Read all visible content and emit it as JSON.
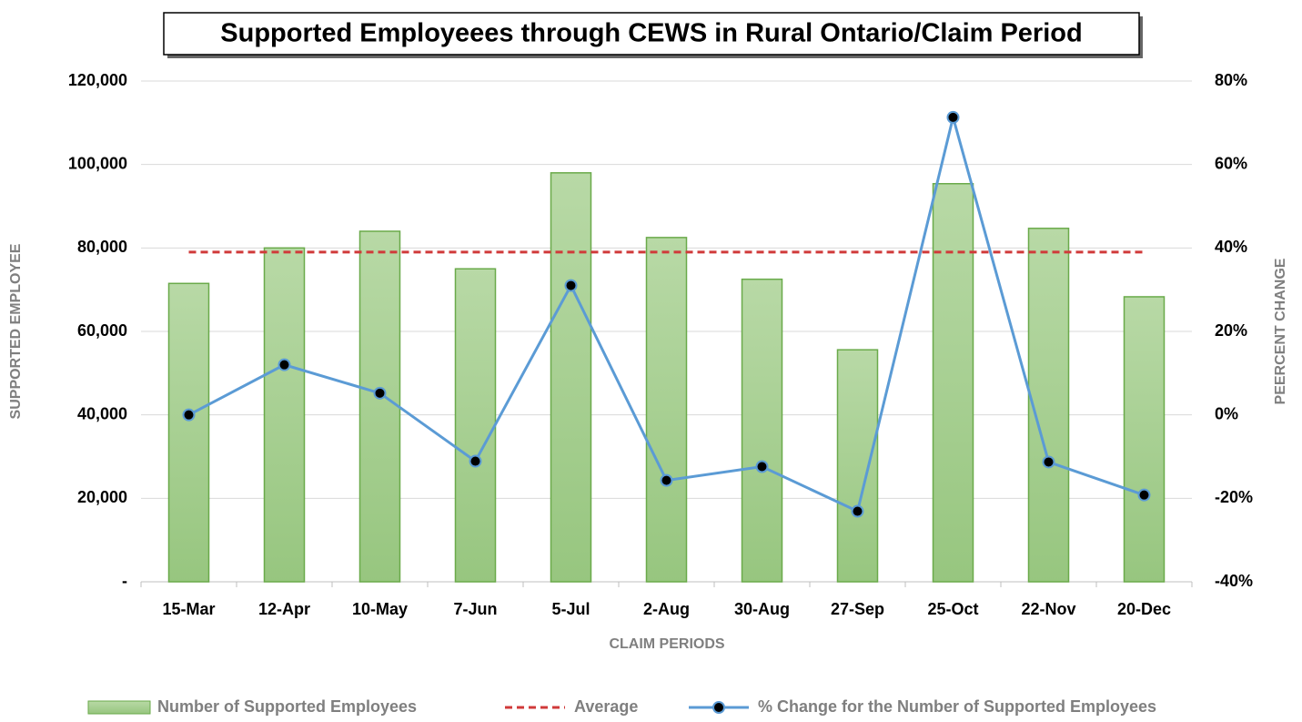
{
  "chart_data": {
    "type": "bar",
    "title": "Supported Employeees through CEWS in Rural Ontario/Claim Period",
    "x_label": "CLAIM PERIODS",
    "y_label": "SUPPORTED EMPLOYEE",
    "y2_label": "PEERCENT CHANGE",
    "categories": [
      "15-Mar",
      "12-Apr",
      "10-May",
      "7-Jun",
      "5-Jul",
      "2-Aug",
      "30-Aug",
      "27-Sep",
      "25-Oct",
      "22-Nov",
      "20-Dec"
    ],
    "series": [
      {
        "name": "Number of Supported Employees",
        "type": "bar",
        "color": "#a9d18e",
        "values": [
          71500,
          80000,
          84000,
          75000,
          98000,
          82500,
          72500,
          55600,
          95400,
          84700,
          68300
        ]
      },
      {
        "name": "Average",
        "type": "line",
        "style": "dashed",
        "color": "#d03a3a",
        "values": [
          79000,
          79000,
          79000,
          79000,
          79000,
          79000,
          79000,
          79000,
          79000,
          79000,
          79000
        ]
      },
      {
        "name": "% Change for the Number of Supported Employees",
        "type": "line",
        "axis": "y2",
        "color": "#5b9bd5",
        "values": [
          0,
          12,
          5.2,
          -11.1,
          31,
          -15.7,
          -12.4,
          -23.1,
          71.3,
          -11.3,
          -19.2
        ]
      }
    ],
    "ylim": [
      0,
      120000
    ],
    "yticks": [
      {
        "value": 0,
        "label": "-"
      },
      {
        "value": 20000,
        "label": "20,000"
      },
      {
        "value": 40000,
        "label": "40,000"
      },
      {
        "value": 60000,
        "label": "60,000"
      },
      {
        "value": 80000,
        "label": "80,000"
      },
      {
        "value": 100000,
        "label": "100,000"
      },
      {
        "value": 120000,
        "label": "120,000"
      }
    ],
    "y2lim": [
      -40,
      80
    ],
    "y2ticks": [
      {
        "value": -40,
        "label": "-40%"
      },
      {
        "value": -20,
        "label": "-20%"
      },
      {
        "value": 0,
        "label": "0%"
      },
      {
        "value": 20,
        "label": "20%"
      },
      {
        "value": 40,
        "label": "40%"
      },
      {
        "value": 60,
        "label": "60%"
      },
      {
        "value": 80,
        "label": "80%"
      }
    ],
    "grid": true,
    "legend": "bottom"
  }
}
